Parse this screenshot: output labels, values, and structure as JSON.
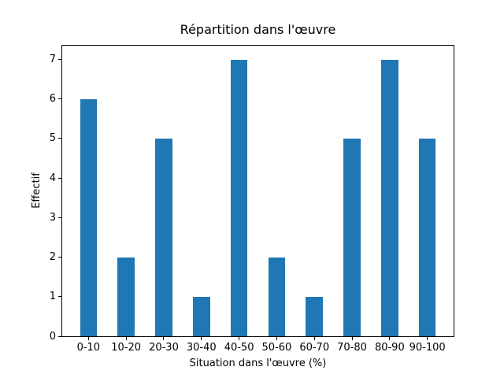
{
  "chart_data": {
    "type": "bar",
    "title": "Répartition dans l'œuvre",
    "xlabel": "Situation dans l'œuvre (%)",
    "ylabel": "Effectif",
    "categories": [
      "0-10",
      "10-20",
      "20-30",
      "30-40",
      "40-50",
      "50-60",
      "60-70",
      "70-80",
      "80-90",
      "90-100"
    ],
    "values": [
      6,
      2,
      5,
      1,
      7,
      2,
      1,
      5,
      7,
      5
    ],
    "yticks": [
      0,
      1,
      2,
      3,
      4,
      5,
      6,
      7
    ],
    "ylim": [
      0,
      7.35
    ],
    "bar_color": "#1f77b4",
    "axis_color": "#000000",
    "background_color": "#ffffff",
    "grid": false,
    "legend": null
  }
}
